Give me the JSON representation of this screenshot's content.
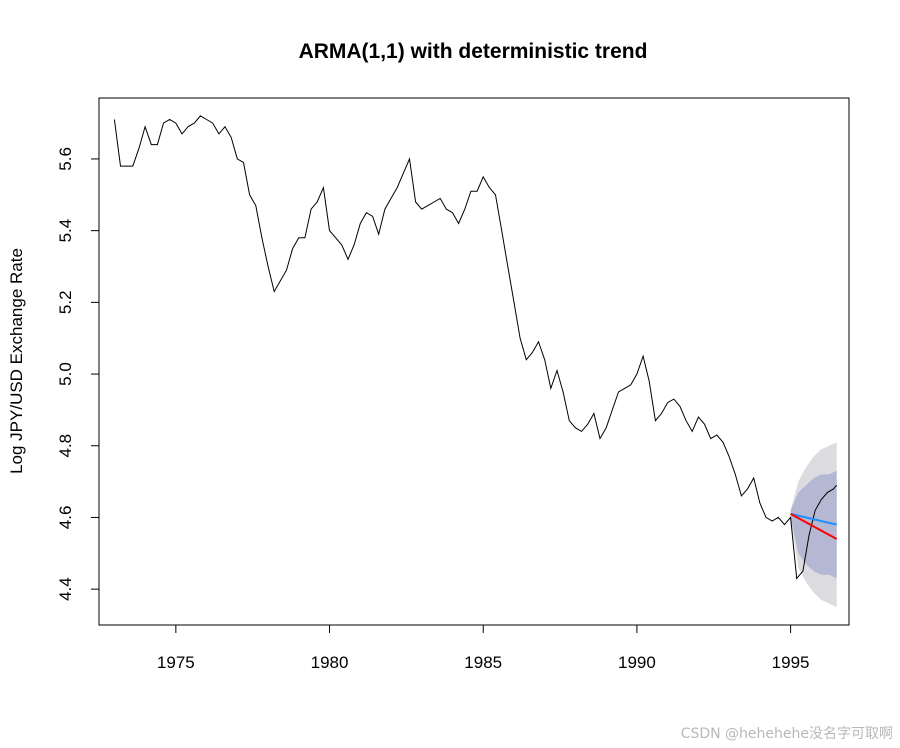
{
  "chart_data": {
    "type": "line",
    "title": "ARMA(1,1) with deterministic trend",
    "xlabel": "",
    "ylabel": "Log JPY/USD Exchange Rate",
    "xlim": [
      1972.5,
      1996.9
    ],
    "ylim": [
      4.3,
      5.77
    ],
    "x_ticks": [
      1975,
      1980,
      1985,
      1990,
      1995
    ],
    "x_tick_labels": [
      "1975",
      "1980",
      "1985",
      "1990",
      "1995"
    ],
    "y_ticks": [
      4.4,
      4.6,
      4.8,
      5.0,
      5.2,
      5.4,
      5.6
    ],
    "y_tick_labels": [
      "4.4",
      "4.6",
      "4.8",
      "5.0",
      "5.2",
      "5.4",
      "5.6"
    ],
    "grid": false,
    "legend": "none",
    "colors": {
      "observed": "#000000",
      "forecast_trend": "#ff0000",
      "forecast_arma": "#1e90ff",
      "band_95": "#dcdce0",
      "band_80": "#b4b8d2"
    },
    "series": [
      {
        "role": "observed",
        "x": [
          1973.0,
          1973.2,
          1973.4,
          1973.6,
          1973.8,
          1974.0,
          1974.2,
          1974.4,
          1974.6,
          1974.8,
          1975.0,
          1975.2,
          1975.4,
          1975.6,
          1975.8,
          1976.0,
          1976.2,
          1976.4,
          1976.6,
          1976.8,
          1977.0,
          1977.2,
          1977.4,
          1977.6,
          1977.8,
          1978.0,
          1978.2,
          1978.4,
          1978.6,
          1978.8,
          1979.0,
          1979.2,
          1979.4,
          1979.6,
          1979.8,
          1980.0,
          1980.2,
          1980.4,
          1980.6,
          1980.8,
          1981.0,
          1981.2,
          1981.4,
          1981.6,
          1981.8,
          1982.0,
          1982.2,
          1982.4,
          1982.6,
          1982.8,
          1983.0,
          1983.2,
          1983.4,
          1983.6,
          1983.8,
          1984.0,
          1984.2,
          1984.4,
          1984.6,
          1984.8,
          1985.0,
          1985.2,
          1985.4,
          1985.6,
          1985.8,
          1986.0,
          1986.2,
          1986.4,
          1986.6,
          1986.8,
          1987.0,
          1987.2,
          1987.4,
          1987.6,
          1987.8,
          1988.0,
          1988.2,
          1988.4,
          1988.6,
          1988.8,
          1989.0,
          1989.2,
          1989.4,
          1989.6,
          1989.8,
          1990.0,
          1990.2,
          1990.4,
          1990.6,
          1990.8,
          1991.0,
          1991.2,
          1991.4,
          1991.6,
          1991.8,
          1992.0,
          1992.2,
          1992.4,
          1992.6,
          1992.8,
          1993.0,
          1993.2,
          1993.4,
          1993.6,
          1993.8,
          1994.0,
          1994.2,
          1994.4,
          1994.6,
          1994.8,
          1995.0,
          1995.2,
          1995.4,
          1995.6,
          1995.8,
          1996.0,
          1996.2,
          1996.4,
          1996.5
        ],
        "y": [
          5.71,
          5.58,
          5.58,
          5.58,
          5.63,
          5.69,
          5.64,
          5.64,
          5.7,
          5.71,
          5.7,
          5.67,
          5.69,
          5.7,
          5.72,
          5.71,
          5.7,
          5.67,
          5.69,
          5.66,
          5.6,
          5.59,
          5.5,
          5.47,
          5.38,
          5.3,
          5.23,
          5.26,
          5.29,
          5.35,
          5.38,
          5.38,
          5.46,
          5.48,
          5.52,
          5.4,
          5.38,
          5.36,
          5.32,
          5.36,
          5.42,
          5.45,
          5.44,
          5.39,
          5.46,
          5.49,
          5.52,
          5.56,
          5.6,
          5.48,
          5.46,
          5.47,
          5.48,
          5.49,
          5.46,
          5.45,
          5.42,
          5.46,
          5.51,
          5.51,
          5.55,
          5.52,
          5.5,
          5.4,
          5.3,
          5.2,
          5.1,
          5.04,
          5.06,
          5.09,
          5.04,
          4.96,
          5.01,
          4.95,
          4.87,
          4.85,
          4.84,
          4.86,
          4.89,
          4.82,
          4.85,
          4.9,
          4.95,
          4.96,
          4.97,
          5.0,
          5.05,
          4.98,
          4.87,
          4.89,
          4.92,
          4.93,
          4.91,
          4.87,
          4.84,
          4.88,
          4.86,
          4.82,
          4.83,
          4.81,
          4.77,
          4.72,
          4.66,
          4.68,
          4.71,
          4.64,
          4.6,
          4.59,
          4.6,
          4.58,
          4.6,
          4.43,
          4.45,
          4.55,
          4.62,
          4.65,
          4.67,
          4.68,
          4.69
        ]
      },
      {
        "role": "forecast_trend",
        "x": [
          1995.0,
          1996.5
        ],
        "y": [
          4.61,
          4.54
        ]
      },
      {
        "role": "forecast_arma",
        "x": [
          1995.0,
          1996.5
        ],
        "y": [
          4.61,
          4.58
        ]
      },
      {
        "role": "band_95",
        "x": [
          1995.0,
          1995.25,
          1995.5,
          1995.75,
          1996.0,
          1996.25,
          1996.5
        ],
        "lower": [
          4.6,
          4.46,
          4.42,
          4.39,
          4.37,
          4.36,
          4.35
        ],
        "upper": [
          4.62,
          4.7,
          4.74,
          4.77,
          4.79,
          4.8,
          4.81
        ]
      },
      {
        "role": "band_80",
        "x": [
          1995.0,
          1995.25,
          1995.5,
          1995.75,
          1996.0,
          1996.25,
          1996.5
        ],
        "lower": [
          4.6,
          4.5,
          4.47,
          4.45,
          4.44,
          4.44,
          4.43
        ],
        "upper": [
          4.62,
          4.67,
          4.69,
          4.71,
          4.72,
          4.72,
          4.73
        ]
      }
    ]
  },
  "watermark": "CSDN @hehehehe没名字可取啊"
}
